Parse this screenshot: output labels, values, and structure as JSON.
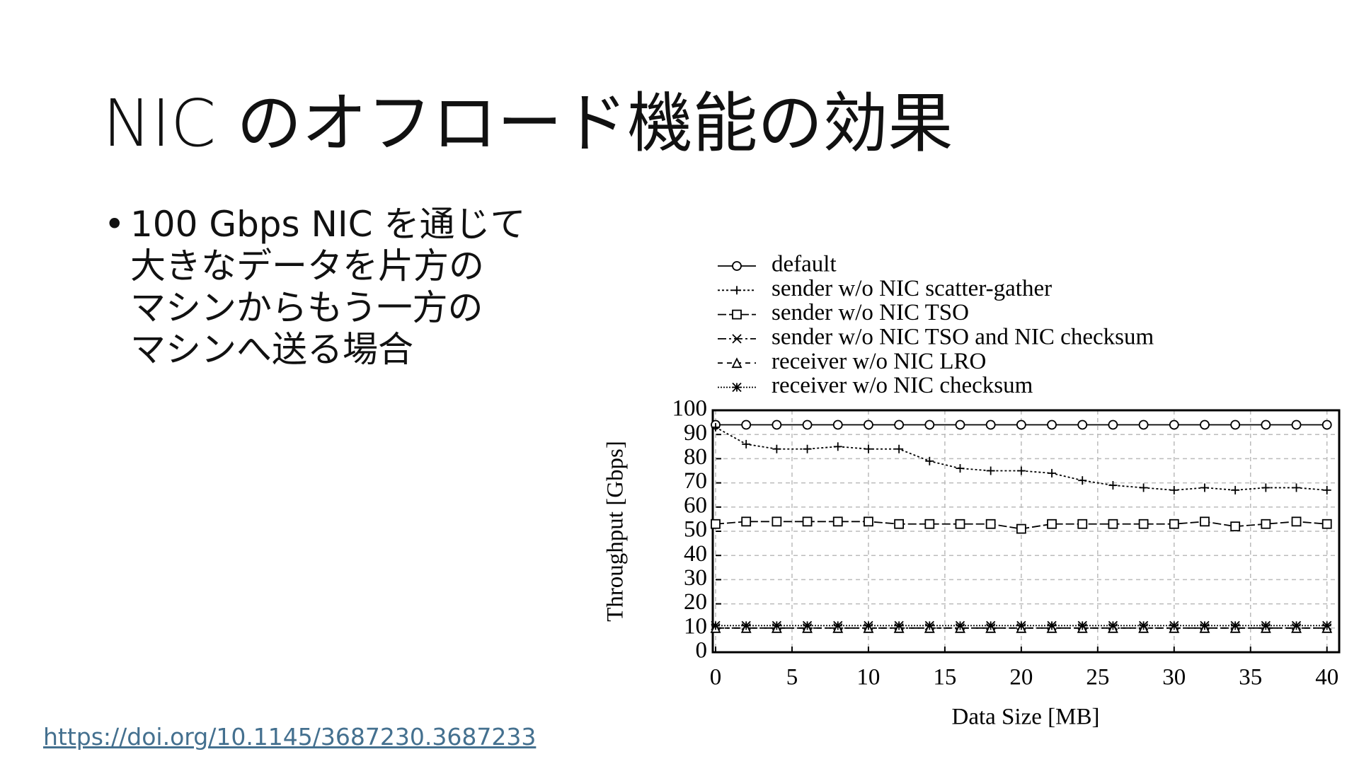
{
  "slide": {
    "title": "NIC のオフロード機能の効果",
    "bullet": [
      "100 Gbps NIC を通じて",
      "大きなデータを片方の",
      "マシンからもう一方の",
      "マシンへ送る場合"
    ],
    "link": "https://doi.org/10.1145/3687230.3687233"
  },
  "chart_data": {
    "type": "line",
    "x_label": "Data Size [MB]",
    "y_label": "Throughput [Gbps]",
    "x": [
      0,
      2,
      4,
      6,
      8,
      10,
      12,
      14,
      16,
      18,
      20,
      22,
      24,
      26,
      28,
      30,
      32,
      34,
      36,
      38,
      40
    ],
    "xlim": [
      0,
      40.8
    ],
    "ylim": [
      0,
      100
    ],
    "xticks": [
      0,
      5,
      10,
      15,
      20,
      25,
      30,
      35,
      40
    ],
    "yticks": [
      0,
      10,
      20,
      30,
      40,
      50,
      60,
      70,
      80,
      90,
      100
    ],
    "grid": true,
    "series": [
      {
        "name": "default",
        "color": "#000000",
        "marker": "circle",
        "values": [
          94,
          94,
          94,
          94,
          94,
          94,
          94,
          94,
          94,
          94,
          94,
          94,
          94,
          94,
          94,
          94,
          94,
          94,
          94,
          94,
          94
        ]
      },
      {
        "name": "sender w/o NIC scatter-gather",
        "color": "#000000",
        "marker": "plus",
        "values": [
          93,
          86,
          84,
          84,
          85,
          84,
          84,
          79,
          76,
          75,
          75,
          74,
          71,
          69,
          68,
          67,
          68,
          67,
          68,
          68,
          67
        ]
      },
      {
        "name": "sender w/o NIC TSO",
        "color": "#000000",
        "marker": "square",
        "values": [
          53,
          54,
          54,
          54,
          54,
          54,
          53,
          53,
          53,
          53,
          51,
          53,
          53,
          53,
          53,
          53,
          54,
          52,
          53,
          54,
          53
        ]
      },
      {
        "name": "sender w/o NIC TSO and NIC checksum",
        "color": "#000000",
        "marker": "x",
        "values": [
          10,
          10,
          10,
          10,
          10,
          10,
          10,
          10,
          10,
          10,
          10,
          10,
          10,
          10,
          10,
          10,
          10,
          10,
          10,
          10,
          10
        ]
      },
      {
        "name": "receiver w/o NIC LRO",
        "color": "#000000",
        "marker": "triangle",
        "values": [
          10,
          10,
          10,
          10,
          10,
          10,
          10,
          10,
          10,
          10,
          10,
          10,
          10,
          10,
          10,
          10,
          10,
          10,
          10,
          10,
          10
        ]
      },
      {
        "name": "receiver w/o NIC checksum",
        "color": "#000000",
        "marker": "star",
        "values": [
          11,
          11,
          11,
          11,
          11,
          11,
          11,
          11,
          11,
          11,
          11,
          11,
          11,
          11,
          11,
          11,
          11,
          11,
          11,
          11,
          11
        ]
      }
    ]
  }
}
